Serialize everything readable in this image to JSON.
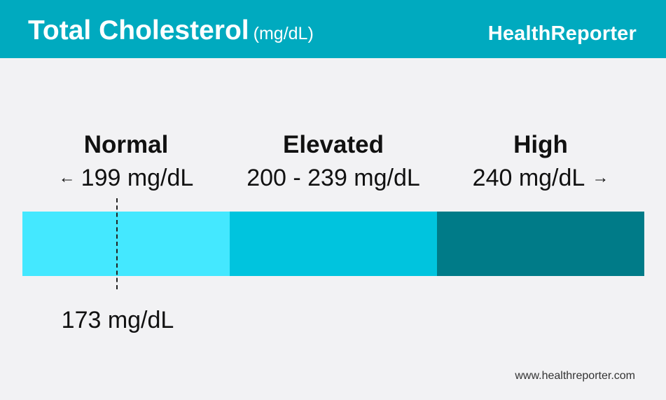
{
  "header": {
    "title": "Total Cholesterol",
    "title_unit": "(mg/dL)",
    "brand": "HealthReporter"
  },
  "chart_data": {
    "type": "bar",
    "unit": "mg/dL",
    "categories": [
      {
        "name": "Normal",
        "range_label": "199 mg/dL",
        "arrow": "←",
        "min": null,
        "max": 199,
        "color": "#44e8ff"
      },
      {
        "name": "Elevated",
        "range_label": "200 - 239 mg/dL",
        "arrow": "",
        "min": 200,
        "max": 239,
        "color": "#00c4de"
      },
      {
        "name": "High",
        "range_label": "240 mg/dL",
        "arrow": "→",
        "min": 240,
        "max": null,
        "color": "#007b88"
      }
    ],
    "marker": {
      "value": 173,
      "label": "173 mg/dL"
    }
  },
  "footer": {
    "url": "www.healthreporter.com"
  },
  "colors": {
    "header_bg": "#00aabf",
    "page_bg": "#f2f2f4"
  }
}
